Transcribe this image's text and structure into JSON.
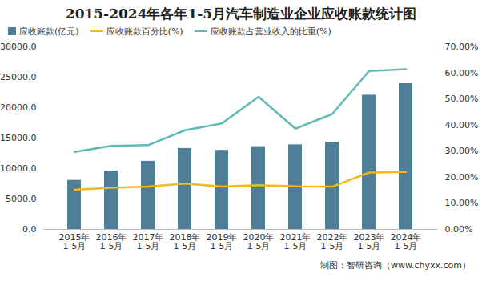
{
  "chart_data": {
    "type": "bar",
    "title": "2015-2024年各年1-5月汽车制造业企业应收账款统计图",
    "categories": [
      "2015年\n1-5月",
      "2016年\n1-5月",
      "2017年\n1-5月",
      "2018年\n1-5月",
      "2019年\n1-5月",
      "2020年\n1-5月",
      "2021年\n1-5月",
      "2022年\n1-5月",
      "2023年\n1-5月",
      "2024年\n1-5月"
    ],
    "series": [
      {
        "name": "应收账款(亿元)",
        "type": "bar",
        "color": "#4f7f98",
        "values": [
          8070,
          9600,
          11200,
          13300,
          13000,
          13600,
          13900,
          14300,
          22050,
          23950
        ]
      },
      {
        "name": "应收账款百分比(%)",
        "type": "line",
        "axis": "y2",
        "color": "#f4b81c",
        "values": [
          15.2,
          16.0,
          16.4,
          17.6,
          16.4,
          17.0,
          16.5,
          16.4,
          21.8,
          22.0
        ]
      },
      {
        "name": "应收账款占营业收入的比重(%)",
        "type": "line",
        "axis": "y2",
        "color": "#5fbab3",
        "values": [
          29.7,
          32.0,
          32.3,
          38.0,
          40.6,
          50.8,
          38.6,
          44.2,
          60.7,
          61.4
        ]
      }
    ],
    "ylim": [
      0,
      30000
    ],
    "yticks": [
      {
        "value": 0,
        "label": "0.0"
      },
      {
        "value": 5000,
        "label": "5000.0"
      },
      {
        "value": 10000,
        "label": "10000.0"
      },
      {
        "value": 15000,
        "label": "15000.0"
      },
      {
        "value": 20000,
        "label": "20000.0"
      },
      {
        "value": 25000,
        "label": "25000.0"
      },
      {
        "value": 30000,
        "label": "30000.0"
      }
    ],
    "y2lim": [
      0,
      70
    ],
    "y2ticks": [
      {
        "value": 0,
        "label": "0.00%"
      },
      {
        "value": 10,
        "label": "10.00%"
      },
      {
        "value": 20,
        "label": "20.00%"
      },
      {
        "value": 30,
        "label": "30.00%"
      },
      {
        "value": 40,
        "label": "40.00%"
      },
      {
        "value": 50,
        "label": "50.00%"
      },
      {
        "value": 60,
        "label": "60.00%"
      },
      {
        "value": 70,
        "label": "70.00%"
      }
    ],
    "grid": false,
    "legend": "top-left",
    "caption": "制图：智研咨询（www.chyxx.com）"
  }
}
